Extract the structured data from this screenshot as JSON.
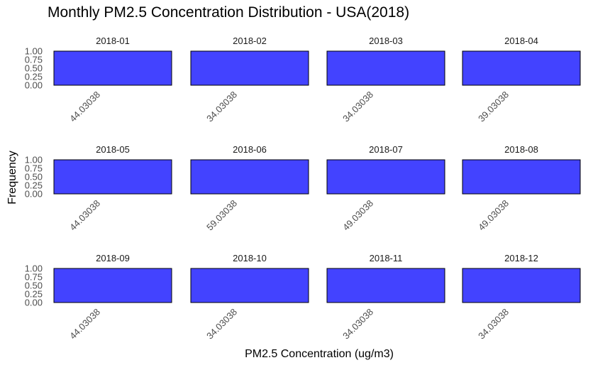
{
  "chart_data": {
    "type": "bar",
    "title": "Monthly PM2.5 Concentration Distribution - USA(2018)",
    "xlabel": "PM2.5 Concentration (ug/m3)",
    "ylabel": "Frequency",
    "ylim": [
      0,
      1
    ],
    "y_ticks": [
      "0.00",
      "0.25",
      "0.50",
      "0.75",
      "1.00"
    ],
    "bar_color": "#3b3bff",
    "facet_layout": "3 rows x 4 columns",
    "grid": true,
    "facets": [
      {
        "label": "2018-01",
        "categories": [
          "44.03038"
        ],
        "values": [
          1
        ]
      },
      {
        "label": "2018-02",
        "categories": [
          "34.03038"
        ],
        "values": [
          1
        ]
      },
      {
        "label": "2018-03",
        "categories": [
          "34.03038"
        ],
        "values": [
          1
        ]
      },
      {
        "label": "2018-04",
        "categories": [
          "39.03038"
        ],
        "values": [
          1
        ]
      },
      {
        "label": "2018-05",
        "categories": [
          "44.03038"
        ],
        "values": [
          1
        ]
      },
      {
        "label": "2018-06",
        "categories": [
          "59.03038"
        ],
        "values": [
          1
        ]
      },
      {
        "label": "2018-07",
        "categories": [
          "49.03038"
        ],
        "values": [
          1
        ]
      },
      {
        "label": "2018-08",
        "categories": [
          "49.03038"
        ],
        "values": [
          1
        ]
      },
      {
        "label": "2018-09",
        "categories": [
          "44.03038"
        ],
        "values": [
          1
        ]
      },
      {
        "label": "2018-10",
        "categories": [
          "34.03038"
        ],
        "values": [
          1
        ]
      },
      {
        "label": "2018-11",
        "categories": [
          "34.03038"
        ],
        "values": [
          1
        ]
      },
      {
        "label": "2018-12",
        "categories": [
          "34.03038"
        ],
        "values": [
          1
        ]
      }
    ]
  }
}
